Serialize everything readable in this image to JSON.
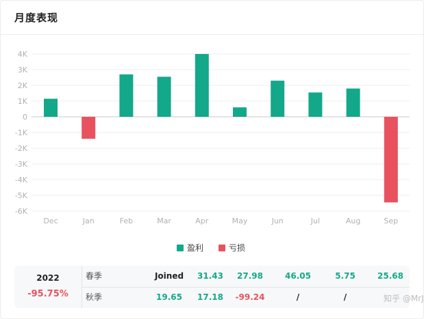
{
  "header": {
    "title": "月度表现"
  },
  "colors": {
    "profit": "#14a88a",
    "loss": "#e8525f",
    "neutral": "#222222",
    "axis": "#b0b0b0"
  },
  "chart_data": {
    "type": "bar",
    "categories": [
      "Dec",
      "Jan",
      "Feb",
      "Mar",
      "Apr",
      "May",
      "Jun",
      "Jul",
      "Aug",
      "Sep"
    ],
    "values": [
      1150,
      -1400,
      2700,
      2550,
      4000,
      600,
      2300,
      1550,
      1800,
      -5450
    ],
    "ylim": [
      -6000,
      4000
    ],
    "ytick_values": [
      4000,
      3000,
      2000,
      1000,
      0,
      -1000,
      -2000,
      -3000,
      -4000,
      -5000,
      -6000
    ],
    "ytick_labels": [
      "4K",
      "3K",
      "2K",
      "1K",
      "0",
      "-1K",
      "-2K",
      "-3K",
      "-4K",
      "-5K",
      "-6K"
    ],
    "grid": true,
    "legend": [
      {
        "name": "盈利",
        "color": "#14a88a"
      },
      {
        "name": "亏损",
        "color": "#e8525f"
      }
    ],
    "legend_position": "bottom-center"
  },
  "summary": {
    "year": "2022",
    "total": "-95.75%",
    "rows": [
      {
        "season": "春季",
        "cells": [
          "Joined",
          "31.43",
          "27.98",
          "46.05",
          "5.75",
          "25.68"
        ]
      },
      {
        "season": "秋季",
        "cells": [
          "19.65",
          "17.18",
          "-99.24",
          "/",
          "/",
          ""
        ]
      }
    ]
  },
  "watermark": "知乎 @MrJ"
}
